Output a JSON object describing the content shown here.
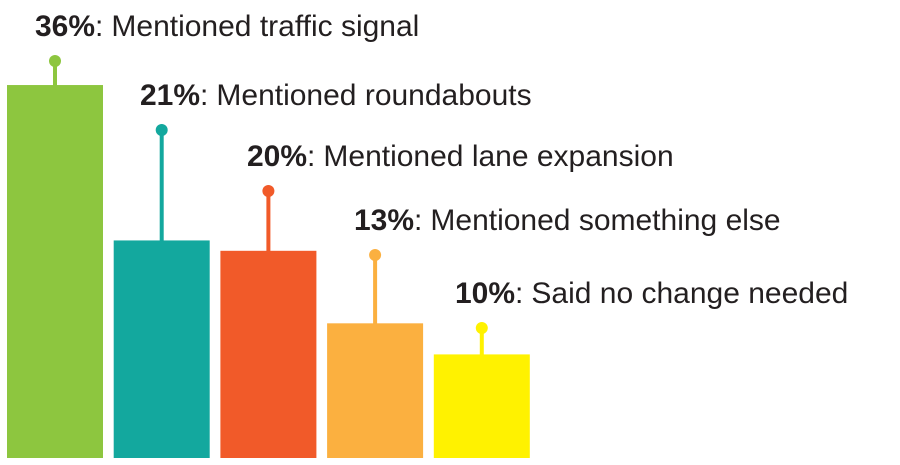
{
  "chart_data": {
    "type": "bar",
    "categories": [
      "Mentioned traffic signal",
      "Mentioned roundabouts",
      "Mentioned lane expansion",
      "Mentioned something else",
      "Said no change needed"
    ],
    "values": [
      36,
      21,
      20,
      13,
      10
    ],
    "value_labels": [
      "36%",
      "21%",
      "20%",
      "13%",
      "10%"
    ],
    "label_separator": ":",
    "colors": [
      "#8dc63f",
      "#13a89e",
      "#f15a29",
      "#fbb040",
      "#fff200"
    ]
  }
}
